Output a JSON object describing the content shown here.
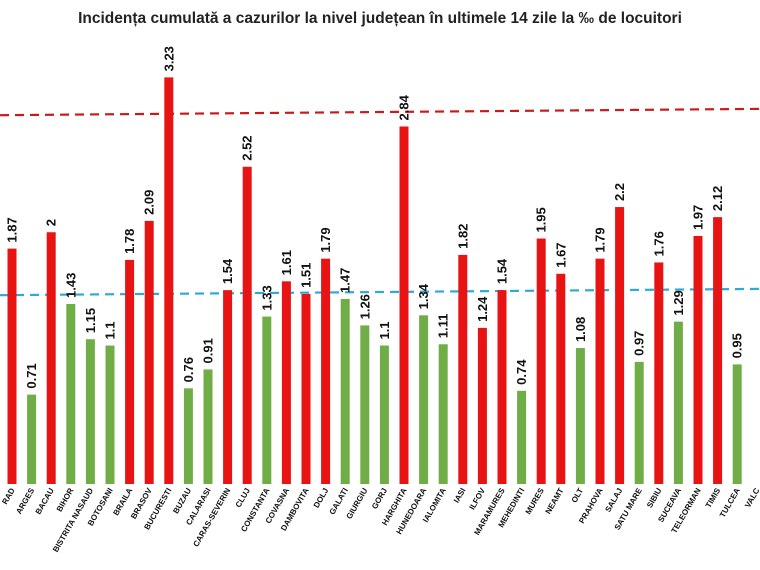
{
  "chart_data": {
    "type": "bar",
    "title": "Incidența cumulată a cazurilor la nivel județean în ultimele 14 zile la ‰ de locuitori",
    "categories": [
      "ARAD",
      "ARGES",
      "BACAU",
      "BIHOR",
      "BISTRITA NASAUD",
      "BOTOSANI",
      "BRAILA",
      "BRASOV",
      "BUCURESTI",
      "BUZAU",
      "CALARASI",
      "CARAS-SEVERIN",
      "CLUJ",
      "CONSTANTA",
      "COVASNA",
      "DAMBOVITA",
      "DOLJ",
      "GALATI",
      "GIURGIU",
      "GORJ",
      "HARGHITA",
      "HUNEDOARA",
      "IALOMITA",
      "IASI",
      "ILFOV",
      "MARAMURES",
      "MEHEDINTI",
      "MURES",
      "NEAMT",
      "OLT",
      "PRAHOVA",
      "SALAJ",
      "SATU MARE",
      "SIBIU",
      "SUCEAVA",
      "TELEORMAN",
      "TIMIS",
      "TULCEA",
      "VALCEA"
    ],
    "category_labels": [
      "RAD",
      "ARGES",
      "BACAU",
      "BIHOR",
      "BISTRITA NASAUD",
      "BOTOSANI",
      "BRAILA",
      "BRASOV",
      "BUCURESTI",
      "BUZAU",
      "CALARASI",
      "CARAS-SEVERIN",
      "CLUJ",
      "CONSTANTA",
      "COVASNA",
      "DAMBOVITA",
      "DOLJ",
      "GALATI",
      "GIURGIU",
      "GORJ",
      "HARGHITA",
      "HUNEDOARA",
      "IALOMITA",
      "IASI",
      "ILFOV",
      "MARAMURES",
      "MEHEDINTI",
      "MURES",
      "NEAMT",
      "OLT",
      "PRAHOVA",
      "SALAJ",
      "SATU MARE",
      "SIBIU",
      "SUCEAVA",
      "TELEORMAN",
      "TIMIS",
      "TULCEA",
      "VALC"
    ],
    "values": [
      1.87,
      0.71,
      2,
      1.43,
      1.15,
      1.1,
      1.78,
      2.09,
      3.23,
      0.76,
      0.91,
      1.54,
      2.52,
      1.33,
      1.61,
      1.51,
      1.79,
      1.47,
      1.26,
      1.1,
      2.84,
      1.34,
      1.11,
      1.82,
      1.24,
      1.54,
      0.74,
      1.95,
      1.67,
      1.08,
      1.79,
      2.2,
      0.97,
      1.76,
      1.29,
      1.97,
      2.12,
      0.95,
      null
    ],
    "value_labels": [
      "1.87",
      "0.71",
      "2",
      "1.43",
      "1.15",
      "1.1",
      "1.78",
      "2.09",
      "3.23",
      "0.76",
      "0.91",
      "1.54",
      "2.52",
      "1.33",
      "1.61",
      "1.51",
      "1.79",
      "1.47",
      "1.26",
      "1.1",
      "2.84",
      "1.34",
      "1.11",
      "1.82",
      "1.24",
      "1.54",
      "0.74",
      "1.95",
      "1.67",
      "1.08",
      "1.79",
      "2.2",
      "0.97",
      "1.76",
      "1.29",
      "1.97",
      "2.12",
      "0.95",
      ""
    ],
    "bar_colors": [
      "#e81313",
      "#70ad47",
      "#e81313",
      "#70ad47",
      "#70ad47",
      "#70ad47",
      "#e81313",
      "#e81313",
      "#e81313",
      "#70ad47",
      "#70ad47",
      "#e81313",
      "#e81313",
      "#70ad47",
      "#e81313",
      "#e81313",
      "#e81313",
      "#70ad47",
      "#70ad47",
      "#70ad47",
      "#e81313",
      "#70ad47",
      "#70ad47",
      "#e81313",
      "#e81313",
      "#e81313",
      "#70ad47",
      "#e81313",
      "#e81313",
      "#70ad47",
      "#e81313",
      "#e81313",
      "#70ad47",
      "#e81313",
      "#70ad47",
      "#e81313",
      "#e81313",
      "#70ad47",
      "#70ad47"
    ],
    "colors": {
      "high": "#e81313",
      "low": "#70ad47",
      "upper_threshold": "#cc1a1a",
      "lower_threshold": "#2eaad6"
    },
    "reference_lines": [
      {
        "style": "dashed",
        "color": "#cc1a1a",
        "y_start": 2.93,
        "y_end": 2.98
      },
      {
        "style": "dashed",
        "color": "#2eaad6",
        "y_start": 1.5,
        "y_end": 1.55
      }
    ],
    "ylim": [
      0,
      3.4
    ],
    "xlabel": "",
    "ylabel": "",
    "grid": false
  }
}
